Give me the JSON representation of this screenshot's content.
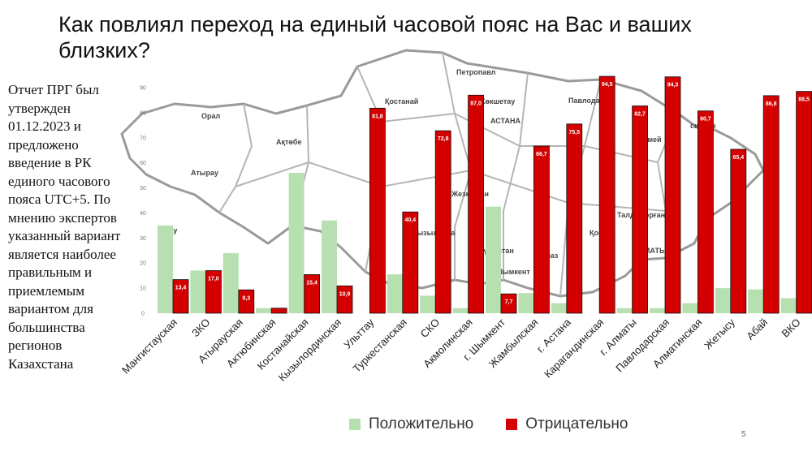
{
  "slide": {
    "title": "Как повлиял переход на единый часовой пояс на Вас и ваших близких?",
    "side_text": "Отчет ПРГ был утвержден 01.12.2023 и предложено введение в РК единого часового пояса UTC+5. По мнению экспертов указанный вариант является наиболее правильным и приемлемым вариантом для большинства регионов Казахстана",
    "page_number": "5",
    "map_labels": [
      "Петропавл",
      "Қостанай",
      "Көкшетау",
      "АСТАНА",
      "Павлодар",
      "Орал",
      "Ақтөбе",
      "Атырау",
      "Семей",
      "скемен",
      "Жезқазған",
      "Қызылорда",
      "Талдықорған",
      "АЛМАТЫ",
      "тау",
      "Тараз",
      "Түркістан",
      "Шымкент",
      "Қонаев"
    ]
  },
  "colors": {
    "positive": "#b6e0b0",
    "negative": "#d40000",
    "map": "#9a9a9a"
  },
  "chart_data": {
    "type": "bar",
    "categories": [
      "Мангистауская",
      "ЗКО",
      "Атырауская",
      "Актюбинская",
      "Костанайская",
      "Кызылординская",
      "Ульттау",
      "Туркестанская",
      "СКО",
      "Акмолинская",
      "г. Шымкент",
      "Жамбылская",
      "г. Астана",
      "Карагандинская",
      "г. Алматы",
      "Павлодарская",
      "Алматинская",
      "Жетысу",
      "Абай",
      "ВКО"
    ],
    "series": [
      {
        "name": "Положительно",
        "values": [
          35,
          17,
          24,
          2,
          56,
          37,
          0,
          15.5,
          7,
          2,
          42.5,
          8,
          4,
          0,
          2,
          2,
          4,
          10,
          9.5,
          6
        ]
      },
      {
        "name": "Отрицательно",
        "values": [
          13.4,
          17.0,
          9.3,
          2,
          15.4,
          10.9,
          81.8,
          40.4,
          72.8,
          87.0,
          7.7,
          66.7,
          75.5,
          94.5,
          82.7,
          94.3,
          80.7,
          65.4,
          86.8,
          88.5
        ]
      }
    ],
    "data_labels": [
      "13,4",
      "17,0",
      "9,3",
      "",
      "15,4",
      "10,9",
      "81,8",
      "40,4",
      "72,8",
      "87,0",
      "7,7",
      "66,7",
      "75,5",
      "94,5",
      "82,7",
      "94,3",
      "80,7",
      "65,4",
      "86,8",
      "88,5"
    ],
    "y_ticks": [
      "0",
      "10",
      "20",
      "30",
      "40",
      "50",
      "60",
      "70",
      "80",
      "90"
    ],
    "ylim": [
      0,
      100
    ],
    "legend_position": "bottom",
    "grid": false
  }
}
